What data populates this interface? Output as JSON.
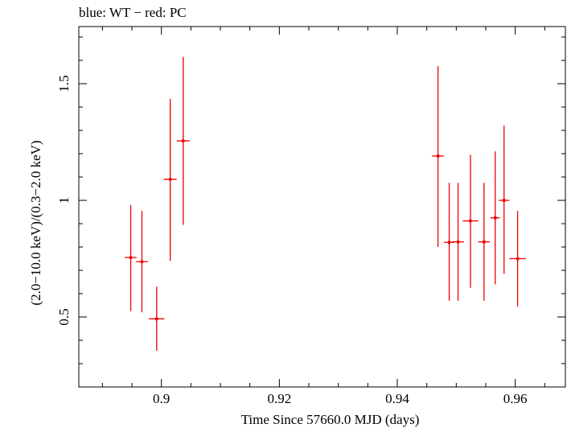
{
  "chart_data": {
    "type": "scatter",
    "title": "blue: WT − red: PC",
    "xlabel": "Time Since 57660.0 MJD (days)",
    "ylabel": "(2.0−10.0 keV)/(0.3−2.0 keV)",
    "xlim": [
      0.886,
      0.9685
    ],
    "ylim": [
      0.2,
      1.745
    ],
    "xticks": [
      0.9,
      0.92,
      0.94,
      0.96
    ],
    "xtick_labels": [
      "0.9",
      "0.92",
      "0.94",
      "0.96"
    ],
    "yticks": [
      0.5,
      1,
      1.5
    ],
    "ytick_labels": [
      "0.5",
      "1",
      "1.5"
    ],
    "grid": false,
    "series": [
      {
        "color": "#ee0000",
        "points": [
          {
            "x": 0.8948,
            "xerr": 0.001,
            "y": 0.755,
            "ylo": 0.525,
            "yhi": 0.98
          },
          {
            "x": 0.8967,
            "xerr": 0.001,
            "y": 0.737,
            "ylo": 0.52,
            "yhi": 0.955
          },
          {
            "x": 0.8992,
            "xerr": 0.0013,
            "y": 0.492,
            "ylo": 0.355,
            "yhi": 0.63
          },
          {
            "x": 0.9015,
            "xerr": 0.0011,
            "y": 1.09,
            "ylo": 0.74,
            "yhi": 1.435
          },
          {
            "x": 0.9037,
            "xerr": 0.0011,
            "y": 1.255,
            "ylo": 0.895,
            "yhi": 1.615
          },
          {
            "x": 0.9469,
            "xerr": 0.001,
            "y": 1.19,
            "ylo": 0.8,
            "yhi": 1.575
          },
          {
            "x": 0.9488,
            "xerr": 0.0009,
            "y": 0.82,
            "ylo": 0.57,
            "yhi": 1.075
          },
          {
            "x": 0.9503,
            "xerr": 0.001,
            "y": 0.822,
            "ylo": 0.57,
            "yhi": 1.075
          },
          {
            "x": 0.9524,
            "xerr": 0.0013,
            "y": 0.912,
            "ylo": 0.625,
            "yhi": 1.195
          },
          {
            "x": 0.9547,
            "xerr": 0.001,
            "y": 0.822,
            "ylo": 0.57,
            "yhi": 1.075
          },
          {
            "x": 0.9566,
            "xerr": 0.0008,
            "y": 0.925,
            "ylo": 0.64,
            "yhi": 1.21
          },
          {
            "x": 0.9581,
            "xerr": 0.0009,
            "y": 1.0,
            "ylo": 0.685,
            "yhi": 1.32
          },
          {
            "x": 0.9604,
            "xerr": 0.0014,
            "y": 0.75,
            "ylo": 0.545,
            "yhi": 0.955
          }
        ]
      }
    ]
  }
}
